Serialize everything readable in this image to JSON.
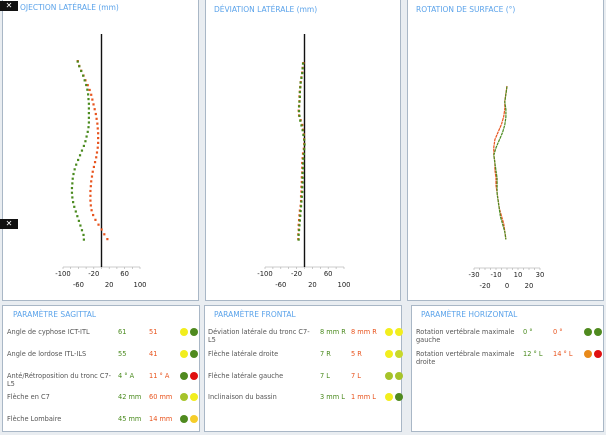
{
  "panels": {
    "projection": {
      "title": "OJECTION LATÉRALE (mm)"
    },
    "deviation": {
      "title": "DÉVIATION LATÉRALE (mm)"
    },
    "rotation": {
      "title": "ROTATION DE SURFACE (°)"
    }
  },
  "colors": {
    "title": "#5ba3ea",
    "green": "#4a8a1e",
    "red": "#e8541e"
  },
  "chart_data": [
    {
      "type": "scatter",
      "title": "OJECTION LATÉRALE (mm)",
      "xlim": [
        -100,
        100
      ],
      "x_ticks_row1": [
        "-100",
        "-20",
        "60"
      ],
      "x_ticks_row2": [
        "-60",
        "20",
        "100"
      ],
      "series": [
        {
          "color": "#e8541e",
          "values": [
            -62,
            -58,
            -53,
            -47,
            -42,
            -36,
            -31,
            -27,
            -24,
            -21,
            -18,
            -15,
            -13,
            -11,
            -10,
            -9,
            -9,
            -9,
            -10,
            -12,
            -14,
            -17,
            -20,
            -23,
            -25,
            -27,
            -28,
            -29,
            -29,
            -29,
            -28,
            -26,
            -22,
            -16,
            -8,
            0,
            7,
            15
          ]
        },
        {
          "color": "#4a8a1e",
          "values": [
            -62,
            -58,
            -53,
            -48,
            -44,
            -40,
            -37,
            -35,
            -34,
            -33,
            -33,
            -33,
            -33,
            -33,
            -34,
            -36,
            -39,
            -42,
            -46,
            -51,
            -56,
            -61,
            -66,
            -70,
            -73,
            -75,
            -76,
            -77,
            -77,
            -76,
            -74,
            -71,
            -67,
            -63,
            -59,
            -55,
            -51,
            -47,
            -46
          ]
        }
      ]
    },
    {
      "type": "scatter",
      "title": "DÉVIATION LATÉRALE (mm)",
      "xlim": [
        -100,
        100
      ],
      "x_ticks_row1": [
        "-100",
        "-20",
        "60"
      ],
      "x_ticks_row2": [
        "-60",
        "20",
        "100"
      ],
      "series": [
        {
          "color": "#e8541e",
          "values": [
            -3,
            -5,
            -6,
            -8,
            -10,
            -11,
            -12,
            -13,
            -13,
            -14,
            -15,
            -14,
            -10,
            -6,
            -4,
            -2,
            -1,
            -1,
            -2,
            -4,
            -5,
            -6,
            -6,
            -6,
            -7,
            -7,
            -8,
            -8,
            -9,
            -9,
            -10,
            -12,
            -13,
            -14,
            -15,
            -15,
            -16,
            -16
          ]
        },
        {
          "color": "#4a8a1e",
          "values": [
            -4,
            -5,
            -6,
            -8,
            -10,
            -11,
            -12,
            -12,
            -13,
            -14,
            -14,
            -13,
            -11,
            -8,
            -5,
            -3,
            -1,
            0,
            -1,
            -2,
            -3,
            -4,
            -4,
            -5,
            -5,
            -5,
            -6,
            -6,
            -7,
            -8,
            -9,
            -10,
            -11,
            -12,
            -13,
            -14,
            -15,
            -15
          ]
        }
      ]
    },
    {
      "type": "line",
      "title": "ROTATION DE SURFACE (°)",
      "xlim": [
        -30,
        30
      ],
      "x_ticks_row1": [
        "-30",
        "-10",
        "10",
        "30"
      ],
      "x_ticks_row2": [
        "-20",
        "0",
        "20"
      ],
      "series": [
        {
          "color": "#e8541e",
          "values": [
            0,
            -1,
            -2,
            -2,
            -3,
            -5,
            -8,
            -11,
            -12,
            -12,
            -11,
            -11,
            -10,
            -10,
            -9,
            -8,
            -7,
            -5,
            -3,
            -2,
            -1
          ]
        },
        {
          "color": "#4a8a1e",
          "values": [
            0,
            -1,
            -2,
            -1,
            -1,
            -2,
            -4,
            -7,
            -10,
            -12,
            -11,
            -10,
            -9,
            -9,
            -9,
            -8,
            -7,
            -6,
            -4,
            -2,
            -1
          ]
        }
      ]
    }
  ],
  "sagittal": {
    "title": "PARAMÈTRE SAGITTAL",
    "rows": [
      {
        "label": "Angle de cyphose ICT-ITL",
        "v1": "61",
        "v2": "51",
        "d1": "#f2ee1e",
        "d2": "#4f8a1f"
      },
      {
        "label": "Angle de lordose ITL-ILS",
        "v1": "55",
        "v2": "41",
        "d1": "#f2ee1e",
        "d2": "#4f8a1f"
      },
      {
        "label": "Anté/Rétroposition du tronc C7-L5",
        "v1": "4 ° A",
        "v2": "11 ° A",
        "d1": "#4f8a1f",
        "d2": "#e01010"
      },
      {
        "label": "Flèche en C7",
        "v1": "42 mm",
        "v2": "60 mm",
        "d1": "#a6c32a",
        "d2": "#f2ee1e"
      },
      {
        "label": "Flèche Lombaire",
        "v1": "45 mm",
        "v2": "14 mm",
        "d1": "#4f8a1f",
        "d2": "#f5cd2a"
      }
    ]
  },
  "frontal": {
    "title": "PARAMÈTRE FRONTAL",
    "rows": [
      {
        "label": "Déviation latérale du tronc C7-L5",
        "v1": "8 mm R",
        "v2": "8 mm R",
        "d1": "#f2ee1e",
        "d2": "#f2ee1e"
      },
      {
        "label": "Flèche latérale droite",
        "v1": "7  R",
        "v2": "5  R",
        "d1": "#f2ee1e",
        "d2": "#c8d82a"
      },
      {
        "label": "Flèche latérale gauche",
        "v1": "7  L",
        "v2": "7  L",
        "d1": "#a6c32a",
        "d2": "#a6c32a"
      },
      {
        "label": "Inclinaison du bassin",
        "v1": "3 mm L",
        "v2": "1 mm L",
        "d1": "#f2ee1e",
        "d2": "#4f8a1f"
      }
    ]
  },
  "horizontal": {
    "title": "PARAMÈTRE HORIZONTAL",
    "rows": [
      {
        "label": "Rotation vertébrale maximale gauche",
        "v1": "0 °",
        "v2": "0 °",
        "d1": "#4f8a1f",
        "d2": "#4f8a1f"
      },
      {
        "label": "Rotation vertébrale maximale droite",
        "v1": "12 ° L",
        "v2": "14 ° L",
        "d1": "#e88a1a",
        "d2": "#e01010"
      }
    ]
  }
}
